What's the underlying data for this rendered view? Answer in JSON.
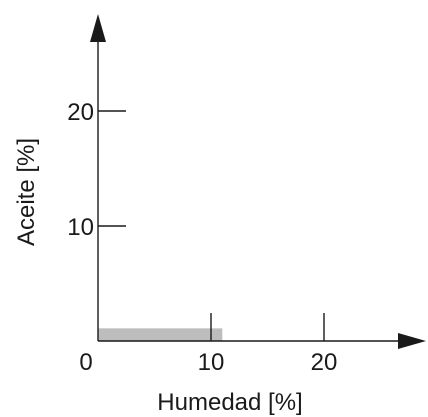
{
  "chart_data": {
    "type": "bar",
    "xlabel": "Humedad [%]",
    "ylabel": "Aceite [%]",
    "xlim": [
      0,
      27
    ],
    "ylim": [
      0,
      28
    ],
    "x_ticks": [
      {
        "value": 0,
        "label": "0"
      },
      {
        "value": 10,
        "label": "10"
      },
      {
        "value": 20,
        "label": "20"
      }
    ],
    "y_ticks": [
      {
        "value": 10,
        "label": "10"
      },
      {
        "value": 20,
        "label": "20"
      }
    ],
    "region": {
      "x": [
        0,
        11
      ],
      "y": [
        0,
        1.1
      ],
      "color": "#bdbdbe"
    },
    "axis_color": "#1a1a1a",
    "grid": false,
    "legend": "none"
  }
}
